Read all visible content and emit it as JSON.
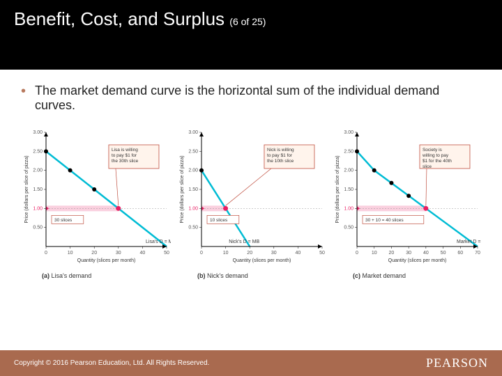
{
  "title": "Benefit, Cost, and Surplus",
  "title_sub": "(6 of 25)",
  "bullet": "The market demand curve is the horizontal sum of the individual demand curves.",
  "copyright": "Copyright © 2016 Pearson Education, Ltd. All Rights Reserved.",
  "brand": "PEARSON",
  "colors": {
    "titlebar_bg": "#000000",
    "titlebar_fg": "#ffffff",
    "bullet_color": "#b87a5e",
    "footer_bg": "#a96a4f",
    "footer_fg": "#ffffff",
    "axis": "#000000",
    "demand_line": "#00bcd4",
    "demand_point": "#000000",
    "price_line": "#f8bbd0",
    "price_arrow": "#e91e63",
    "callout_border": "#c05040",
    "callout_bg": "#fff4ec",
    "tick_color": "#999999",
    "slice_label_border": "#c05040"
  },
  "axis": {
    "ylabel": "Price (dollars per slice of pizza)",
    "xlabel": "Quantity (slices per month)",
    "ylim": [
      0,
      3.0
    ],
    "yticks": [
      "0.50",
      "1.00",
      "1.50",
      "2.00",
      "2.50",
      "3.00"
    ],
    "tick_fontsize": 7,
    "label_fontsize": 7
  },
  "charts": [
    {
      "caption_key": "(a)",
      "caption": "Lisa's demand",
      "callout": "Lisa is willing to pay $1 for the 30th slice",
      "slice_label": "30 slices",
      "demand_label": "Lisa's D = MB",
      "xticks": [
        "0",
        "10",
        "20",
        "30",
        "40",
        "50"
      ],
      "xmax": 50,
      "line": [
        [
          0,
          2.5
        ],
        [
          50,
          0
        ]
      ],
      "points": [
        [
          0,
          2.5
        ],
        [
          10,
          2.0
        ],
        [
          20,
          1.5
        ],
        [
          30,
          1.0
        ]
      ],
      "price_point": [
        30,
        1.0
      ]
    },
    {
      "caption_key": "(b)",
      "caption": "Nick's demand",
      "callout": "Nick is willing to pay $1 for the 10th slice",
      "slice_label": "10 slices",
      "demand_label": "Nick's D = MB",
      "xticks": [
        "0",
        "10",
        "20",
        "30",
        "40",
        "50"
      ],
      "xmax": 50,
      "line": [
        [
          0,
          2.0
        ],
        [
          20,
          0
        ]
      ],
      "points": [
        [
          0,
          2.0
        ],
        [
          10,
          1.0
        ]
      ],
      "price_point": [
        10,
        1.0
      ]
    },
    {
      "caption_key": "(c)",
      "caption": "Market demand",
      "callout": "Society is willing to pay $1 for the 40th slice",
      "slice_label": "30 + 10 = 40 slices",
      "demand_label": "Market D = MSB",
      "xticks": [
        "0",
        "10",
        "20",
        "30",
        "40",
        "50",
        "60",
        "70"
      ],
      "xmax": 70,
      "line": [
        [
          0,
          2.5
        ],
        [
          10,
          2.0
        ],
        [
          70,
          0
        ]
      ],
      "points": [
        [
          0,
          2.5
        ],
        [
          10,
          2.0
        ],
        [
          20,
          1.67
        ],
        [
          30,
          1.33
        ],
        [
          40,
          1.0
        ]
      ],
      "price_point": [
        40,
        1.0
      ]
    }
  ]
}
